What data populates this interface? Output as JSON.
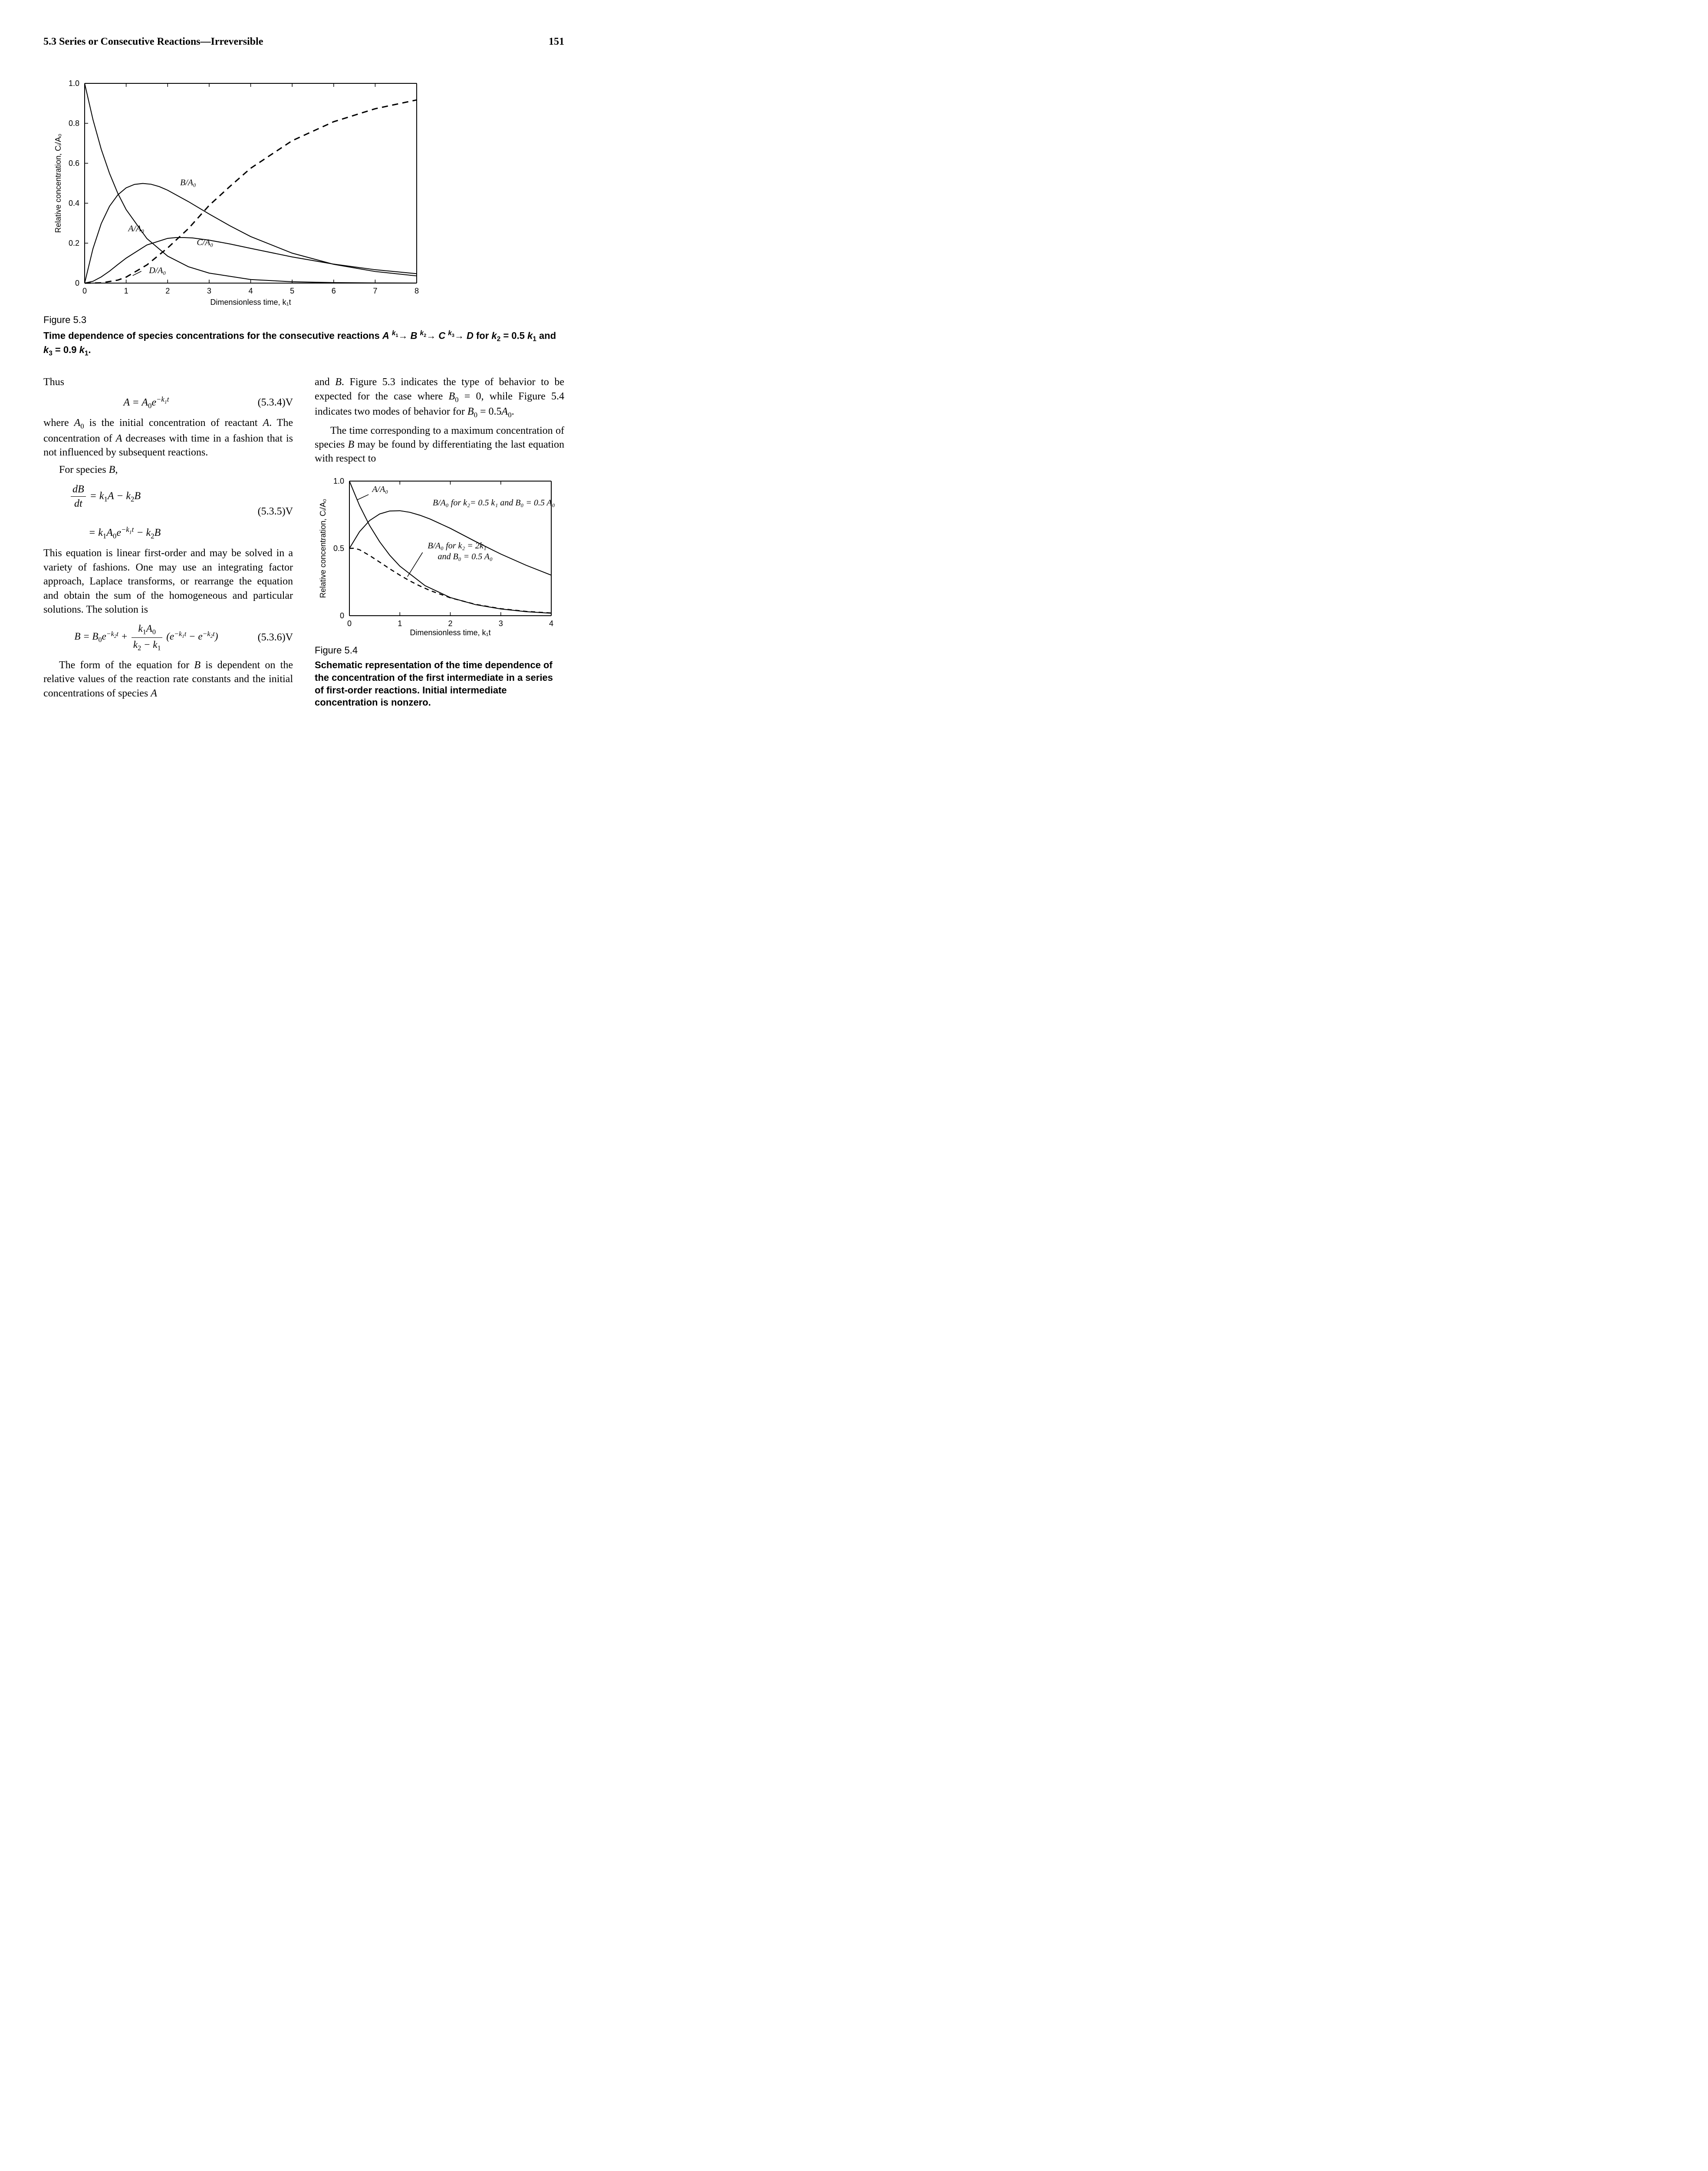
{
  "header": {
    "section": "5.3  Series or Consecutive Reactions—Irreversible",
    "page": "151"
  },
  "figure53": {
    "label": "Figure 5.3",
    "caption_html": "Time dependence of species concentrations for the consecutive reactions <i>A</i> <span class='sup'><i>k</i><span class='sub'>1</span></span>→ <i>B</i> <span class='sup'><i>k</i><span class='sub'>2</span></span>→ <i>C</i> <span class='sup'><i>k</i><span class='sub'>3</span></span>→ <i>D</i> for <i>k</i><span class='sub'>2</span> = 0.5 <i>k</i><span class='sub'>1</span> and <i>k</i><span class='sub'>3</span> = 0.9 <i>k</i><span class='sub'>1</span>.",
    "axes": {
      "xlabel": "Dimensionless time, k₁t",
      "ylabel": "Relative concentration, Cᵢ/A₀",
      "xmin": 0,
      "xmax": 8,
      "ymin": 0,
      "ymax": 1.0,
      "xticks": [
        0,
        1,
        2,
        3,
        4,
        5,
        6,
        7,
        8
      ],
      "yticks": [
        0,
        0.2,
        0.4,
        0.6,
        0.8,
        1.0
      ]
    },
    "curves": {
      "A": {
        "label": "A/A₀",
        "label_xy": [
          1.05,
          0.26
        ],
        "dash": "none",
        "width": 2,
        "points": [
          [
            0,
            1.0
          ],
          [
            0.2,
            0.819
          ],
          [
            0.4,
            0.67
          ],
          [
            0.6,
            0.549
          ],
          [
            0.8,
            0.449
          ],
          [
            1.0,
            0.368
          ],
          [
            1.5,
            0.223
          ],
          [
            2.0,
            0.135
          ],
          [
            2.5,
            0.082
          ],
          [
            3.0,
            0.05
          ],
          [
            4.0,
            0.018
          ],
          [
            5.0,
            0.0067
          ],
          [
            6.0,
            0.0025
          ],
          [
            7.0,
            0.0009
          ],
          [
            8.0,
            0.0003
          ]
        ]
      },
      "B": {
        "label": "B/A₀",
        "label_xy": [
          2.3,
          0.49
        ],
        "dash": "none",
        "width": 2,
        "points": [
          [
            0,
            0
          ],
          [
            0.2,
            0.172
          ],
          [
            0.4,
            0.298
          ],
          [
            0.6,
            0.385
          ],
          [
            0.8,
            0.442
          ],
          [
            1.0,
            0.477
          ],
          [
            1.2,
            0.494
          ],
          [
            1.4,
            0.499
          ],
          [
            1.6,
            0.495
          ],
          [
            1.8,
            0.483
          ],
          [
            2.0,
            0.465
          ],
          [
            2.5,
            0.408
          ],
          [
            3.0,
            0.346
          ],
          [
            3.5,
            0.287
          ],
          [
            4.0,
            0.233
          ],
          [
            5.0,
            0.15
          ],
          [
            6.0,
            0.094
          ],
          [
            7.0,
            0.058
          ],
          [
            8.0,
            0.036
          ]
        ]
      },
      "C": {
        "label": "C/A₀",
        "label_xy": [
          2.7,
          0.19
        ],
        "dash": "none",
        "width": 2,
        "points": [
          [
            0,
            0
          ],
          [
            0.2,
            0.009
          ],
          [
            0.4,
            0.031
          ],
          [
            0.6,
            0.06
          ],
          [
            0.8,
            0.093
          ],
          [
            1.0,
            0.125
          ],
          [
            1.5,
            0.191
          ],
          [
            2.0,
            0.224
          ],
          [
            2.2,
            0.228
          ],
          [
            2.4,
            0.228
          ],
          [
            2.6,
            0.226
          ],
          [
            3.0,
            0.215
          ],
          [
            3.5,
            0.196
          ],
          [
            4.0,
            0.174
          ],
          [
            5.0,
            0.131
          ],
          [
            6.0,
            0.095
          ],
          [
            7.0,
            0.067
          ],
          [
            8.0,
            0.047
          ]
        ]
      },
      "D": {
        "label": "D/A₀",
        "label_xy": [
          1.55,
          0.05
        ],
        "dash": "14 10",
        "width": 3,
        "points": [
          [
            0,
            0
          ],
          [
            0.4,
            0.001
          ],
          [
            0.8,
            0.015
          ],
          [
            1.0,
            0.03
          ],
          [
            1.5,
            0.091
          ],
          [
            2.0,
            0.176
          ],
          [
            2.5,
            0.273
          ],
          [
            3.0,
            0.389
          ],
          [
            3.5,
            0.484
          ],
          [
            4.0,
            0.575
          ],
          [
            5.0,
            0.713
          ],
          [
            6.0,
            0.808
          ],
          [
            7.0,
            0.873
          ],
          [
            8.0,
            0.917
          ]
        ]
      }
    },
    "colors": {
      "stroke": "#000000",
      "background": "#ffffff"
    }
  },
  "text": {
    "thus": "Thus",
    "eq534": {
      "num": "(5.3.4)V"
    },
    "para1_html": "where <i>A</i><span class='sub'>0</span> is the initial concentration of reactant <i>A</i>. The concentration of <i>A</i> decreases with time in a fashion that is not influenced by subsequent reactions.",
    "para2_html": "For species <i>B</i>,",
    "eq535": {
      "num": "(5.3.5)V"
    },
    "para3": "This equation is linear first-order and may be solved in a variety of fashions. One may use an integrating factor approach, Laplace transforms, or rearrange the equation and obtain the sum of the homogeneous and particular solutions. The solution is",
    "eq536": {
      "num": "(5.3.6)V"
    },
    "para4_html": "The form of the equation for <i>B</i> is dependent on the relative values of the reaction rate constants and the initial concentrations of species <i>A</i>",
    "para5_html": "and <i>B</i>. Figure 5.3 indicates the type of behavior to be expected for the case where <i>B</i><span class='sub'>0</span> = 0, while Figure 5.4 indicates two modes of behavior for <i>B</i><span class='sub'>0</span> = 0.5<i>A</i><span class='sub'>0</span>.",
    "para6_html": "The time corresponding to a maximum concentration of species <i>B</i> may be found by differentiating the last equation with respect to"
  },
  "figure54": {
    "label": "Figure 5.4",
    "caption": "Schematic representation of the time dependence of the concentration of the first intermediate in a series of first-order reactions. Initial intermediate concentration is nonzero.",
    "axes": {
      "xlabel": "Dimensionless time, k₁t",
      "ylabel": "Relative concentration, Cᵢ/A₀",
      "xmin": 0,
      "xmax": 4,
      "ymin": 0,
      "ymax": 1.0,
      "xticks": [
        0,
        1,
        2,
        3,
        4
      ],
      "yticks": [
        0.0,
        0.5,
        1.0
      ]
    },
    "curves": {
      "A": {
        "label": "A/A₀",
        "label_xy": [
          0.45,
          0.92
        ],
        "dash": "none",
        "width": 2,
        "points": [
          [
            0,
            1.0
          ],
          [
            0.2,
            0.819
          ],
          [
            0.4,
            0.67
          ],
          [
            0.6,
            0.549
          ],
          [
            0.8,
            0.449
          ],
          [
            1.0,
            0.368
          ],
          [
            1.5,
            0.223
          ],
          [
            2.0,
            0.135
          ],
          [
            2.5,
            0.082
          ],
          [
            3.0,
            0.05
          ],
          [
            3.5,
            0.03
          ],
          [
            4.0,
            0.018
          ]
        ]
      },
      "B_low": {
        "label1": "B/A₀ for k₂= 0.5 k₁ and B₀ = 0.5 A₀",
        "label_xy": [
          1.65,
          0.82
        ],
        "dash": "none",
        "width": 2,
        "points": [
          [
            0,
            0.5
          ],
          [
            0.2,
            0.624
          ],
          [
            0.4,
            0.707
          ],
          [
            0.6,
            0.756
          ],
          [
            0.8,
            0.778
          ],
          [
            1.0,
            0.78
          ],
          [
            1.2,
            0.768
          ],
          [
            1.4,
            0.746
          ],
          [
            1.6,
            0.718
          ],
          [
            2.0,
            0.649
          ],
          [
            2.5,
            0.551
          ],
          [
            3.0,
            0.458
          ],
          [
            3.5,
            0.375
          ],
          [
            4.0,
            0.301
          ]
        ]
      },
      "B_high": {
        "label1": "B/A₀ for k₂ = 2k₁",
        "label2": "and  B₀ = 0.5 A₀",
        "label_xy": [
          1.55,
          0.5
        ],
        "dash": "10 8",
        "width": 2.5,
        "points": [
          [
            0,
            0.5
          ],
          [
            0.1,
            0.501
          ],
          [
            0.2,
            0.49
          ],
          [
            0.4,
            0.447
          ],
          [
            0.6,
            0.398
          ],
          [
            0.8,
            0.348
          ],
          [
            1.0,
            0.301
          ],
          [
            1.2,
            0.258
          ],
          [
            1.4,
            0.22
          ],
          [
            1.6,
            0.187
          ],
          [
            2.0,
            0.133
          ],
          [
            2.5,
            0.084
          ],
          [
            3.0,
            0.052
          ],
          [
            3.5,
            0.032
          ],
          [
            4.0,
            0.02
          ]
        ]
      }
    },
    "colors": {
      "stroke": "#000000",
      "background": "#ffffff"
    }
  }
}
